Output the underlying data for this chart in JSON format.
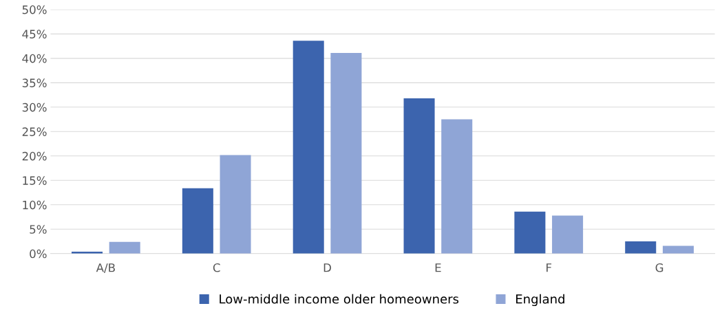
{
  "chart_data": {
    "type": "bar",
    "categories": [
      "A/B",
      "C",
      "D",
      "E",
      "F",
      "G"
    ],
    "series": [
      {
        "name": "Low-middle income older homeowners",
        "color": "#3c64ae",
        "values": [
          0.4,
          13.4,
          43.6,
          31.8,
          8.6,
          2.5
        ]
      },
      {
        "name": "England",
        "color": "#8fa5d6",
        "values": [
          2.4,
          20.2,
          41.1,
          27.5,
          7.8,
          1.6
        ]
      }
    ],
    "ylim": [
      0,
      50
    ],
    "yticks": [
      {
        "value": 0,
        "label": "0%"
      },
      {
        "value": 5,
        "label": "5%"
      },
      {
        "value": 10,
        "label": "10%"
      },
      {
        "value": 15,
        "label": "15%"
      },
      {
        "value": 20,
        "label": "20%"
      },
      {
        "value": 25,
        "label": "25%"
      },
      {
        "value": 30,
        "label": "30%"
      },
      {
        "value": 35,
        "label": "35%"
      },
      {
        "value": 40,
        "label": "40%"
      },
      {
        "value": 45,
        "label": "45%"
      },
      {
        "value": 50,
        "label": "50%"
      }
    ],
    "grid": "y",
    "legend": "bottom"
  }
}
